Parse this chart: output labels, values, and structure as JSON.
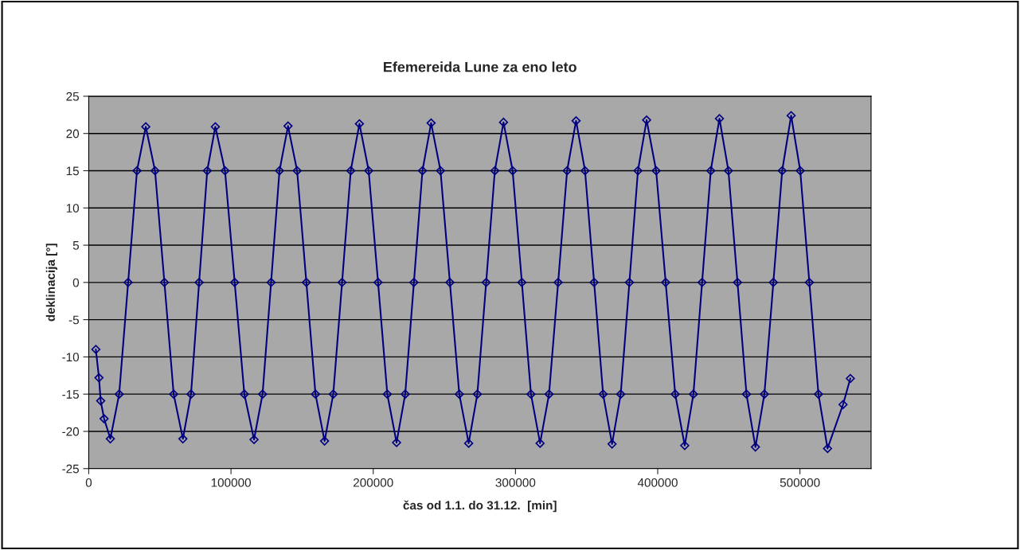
{
  "chart_data": {
    "type": "line",
    "title": "Efemereida Lune za eno leto",
    "xlabel": "čas od 1.1. do 31.12.  [min]",
    "ylabel": "deklinacija [°]",
    "x": [
      5000,
      7200,
      8400,
      10800,
      15200,
      21400,
      27700,
      33900,
      40100,
      46600,
      53200,
      59700,
      66200,
      71900,
      77600,
      83300,
      89000,
      95800,
      102600,
      109400,
      116200,
      122200,
      128200,
      134100,
      140100,
      146500,
      153000,
      159400,
      165800,
      171900,
      178100,
      184200,
      190300,
      196800,
      203400,
      209900,
      216400,
      222500,
      228600,
      234600,
      240700,
      247300,
      253900,
      260500,
      267100,
      273200,
      279400,
      285500,
      291600,
      298000,
      304500,
      310900,
      317300,
      323600,
      330000,
      336300,
      342600,
      348900,
      355300,
      361600,
      367900,
      374000,
      380100,
      386100,
      392200,
      398900,
      405600,
      412300,
      419000,
      425100,
      431200,
      437300,
      443400,
      449700,
      456100,
      462400,
      468700,
      475000,
      481300,
      487500,
      493800,
      500200,
      506600,
      513000,
      519400,
      530300,
      535400
    ],
    "series": [
      {
        "color": "#000080",
        "values": [
          -9.0,
          -12.8,
          -15.9,
          -18.3,
          -21.0,
          -15,
          0,
          15,
          20.9,
          15,
          0,
          -15,
          -21.0,
          -15,
          0,
          15,
          20.9,
          15,
          0,
          -15,
          -21.1,
          -15,
          0,
          15,
          21.0,
          15,
          0,
          -15,
          -21.3,
          -15,
          0,
          15,
          21.3,
          15,
          0,
          -15,
          -21.5,
          -15,
          0,
          15,
          21.4,
          15,
          0,
          -15,
          -21.6,
          -15,
          0,
          15,
          21.5,
          15,
          0,
          -15,
          -21.6,
          -15,
          0,
          15,
          21.7,
          15,
          0,
          -15,
          -21.7,
          -15,
          0,
          15,
          21.8,
          15,
          0,
          -15,
          -21.9,
          -15,
          0,
          15,
          22.0,
          15,
          0,
          -15,
          -22.1,
          -15,
          0,
          15,
          22.4,
          15,
          0,
          -15,
          -22.3,
          -16.4,
          -12.9
        ]
      }
    ],
    "xlim": [
      0,
      550000
    ],
    "xticks": [
      0,
      100000,
      200000,
      300000,
      400000,
      500000
    ],
    "ylim": [
      -25,
      25
    ],
    "yticks": [
      -25,
      -20,
      -15,
      -10,
      -5,
      0,
      5,
      10,
      15,
      20,
      25
    ],
    "grid": "y",
    "marker": "diamond",
    "line_style": "solid",
    "legend": false
  }
}
